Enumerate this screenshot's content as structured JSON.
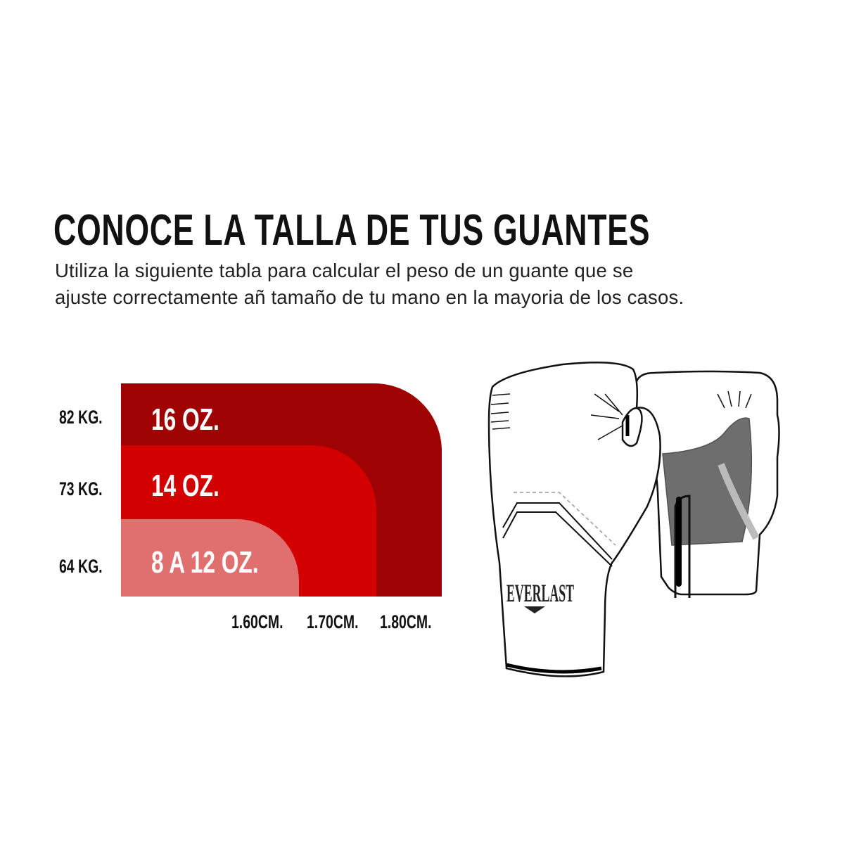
{
  "header": {
    "title": "CONOCE LA TALLA DE TUS GUANTES",
    "subtitle_lines": [
      "Utiliza la siguiente tabla para calcular el peso de un guante que se",
      "ajuste correctamente añ tamaño de tu mano en la mayoria de los casos."
    ]
  },
  "size_chart": {
    "weights": [
      "82 KG.",
      "73 KG.",
      "64 KG."
    ],
    "heights": [
      "1.60CM.",
      "1.70CM.",
      "1.80CM."
    ],
    "bands": [
      {
        "label": "16 OZ.",
        "color": "#9e0202"
      },
      {
        "label": "14 OZ.",
        "color": "#d20000"
      },
      {
        "label": "8 A 12 OZ.",
        "color": "#e07070"
      }
    ]
  },
  "illustration": {
    "brand_logo_text": "EVERLAST"
  }
}
